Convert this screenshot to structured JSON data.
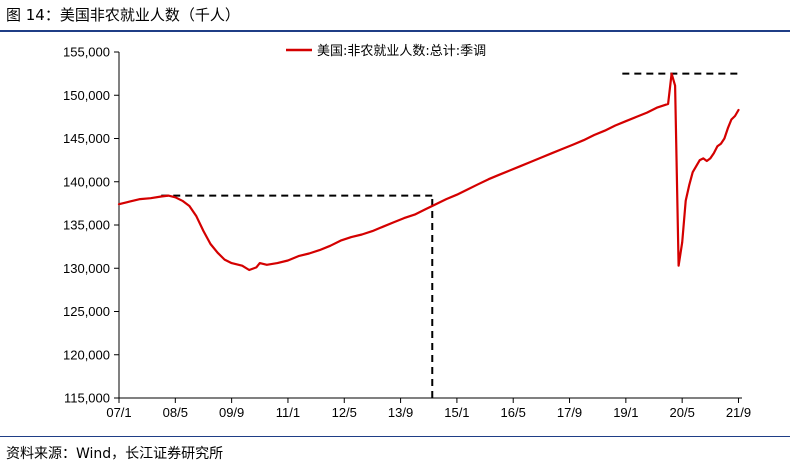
{
  "figure": {
    "title": "图 14：美国非农就业人数（千人）",
    "source": "资料来源：Wind，长江证券研究所"
  },
  "colors": {
    "series": "#d40000",
    "rule": "#1f3e86",
    "reference": "#000000"
  },
  "chart_data": {
    "type": "line",
    "title": "",
    "xlabel": "",
    "ylabel": "",
    "x_ticks": [
      "07/1",
      "08/5",
      "09/9",
      "11/1",
      "12/5",
      "13/9",
      "15/1",
      "16/5",
      "17/9",
      "19/1",
      "20/5",
      "21/9"
    ],
    "xlim": [
      "2007-01",
      "2021-10"
    ],
    "ylim": [
      115000,
      155000
    ],
    "y_ticks": [
      115000,
      120000,
      125000,
      130000,
      135000,
      140000,
      145000,
      150000,
      155000
    ],
    "y_tick_labels": [
      "115,000",
      "120,000",
      "125,000",
      "130,000",
      "135,000",
      "140,000",
      "145,000",
      "150,000",
      "155,000"
    ],
    "grid": false,
    "legend": {
      "position": "top-center"
    },
    "series": [
      {
        "name": "美国:非农就业人数:总计:季调",
        "points": [
          [
            "2007-01",
            137400
          ],
          [
            "2007-04",
            137700
          ],
          [
            "2007-07",
            138000
          ],
          [
            "2007-10",
            138100
          ],
          [
            "2008-01",
            138300
          ],
          [
            "2008-03",
            138400
          ],
          [
            "2008-05",
            138200
          ],
          [
            "2008-07",
            137800
          ],
          [
            "2008-09",
            137200
          ],
          [
            "2008-11",
            136000
          ],
          [
            "2009-01",
            134300
          ],
          [
            "2009-03",
            132800
          ],
          [
            "2009-05",
            131800
          ],
          [
            "2009-07",
            131000
          ],
          [
            "2009-09",
            130600
          ],
          [
            "2009-12",
            130300
          ],
          [
            "2010-02",
            129800
          ],
          [
            "2010-04",
            130100
          ],
          [
            "2010-05",
            130600
          ],
          [
            "2010-07",
            130400
          ],
          [
            "2010-10",
            130600
          ],
          [
            "2011-01",
            130900
          ],
          [
            "2011-04",
            131400
          ],
          [
            "2011-07",
            131700
          ],
          [
            "2011-10",
            132100
          ],
          [
            "2012-01",
            132600
          ],
          [
            "2012-04",
            133200
          ],
          [
            "2012-07",
            133600
          ],
          [
            "2012-10",
            133900
          ],
          [
            "2013-01",
            134300
          ],
          [
            "2013-04",
            134800
          ],
          [
            "2013-07",
            135300
          ],
          [
            "2013-10",
            135800
          ],
          [
            "2014-01",
            136200
          ],
          [
            "2014-04",
            136800
          ],
          [
            "2014-07",
            137400
          ],
          [
            "2014-10",
            138000
          ],
          [
            "2015-01",
            138500
          ],
          [
            "2015-04",
            139100
          ],
          [
            "2015-07",
            139700
          ],
          [
            "2015-10",
            140300
          ],
          [
            "2016-01",
            140800
          ],
          [
            "2016-04",
            141300
          ],
          [
            "2016-07",
            141800
          ],
          [
            "2016-10",
            142300
          ],
          [
            "2017-01",
            142800
          ],
          [
            "2017-04",
            143300
          ],
          [
            "2017-07",
            143800
          ],
          [
            "2017-10",
            144300
          ],
          [
            "2018-01",
            144800
          ],
          [
            "2018-04",
            145400
          ],
          [
            "2018-07",
            145900
          ],
          [
            "2018-10",
            146500
          ],
          [
            "2019-01",
            147000
          ],
          [
            "2019-04",
            147500
          ],
          [
            "2019-07",
            148000
          ],
          [
            "2019-10",
            148600
          ],
          [
            "2020-01",
            149000
          ],
          [
            "2020-02",
            152500
          ],
          [
            "2020-03",
            151100
          ],
          [
            "2020-04",
            130300
          ],
          [
            "2020-05",
            133000
          ],
          [
            "2020-06",
            137800
          ],
          [
            "2020-07",
            139600
          ],
          [
            "2020-08",
            141100
          ],
          [
            "2020-09",
            141800
          ],
          [
            "2020-10",
            142500
          ],
          [
            "2020-11",
            142700
          ],
          [
            "2020-12",
            142400
          ],
          [
            "2021-01",
            142700
          ],
          [
            "2021-02",
            143300
          ],
          [
            "2021-03",
            144100
          ],
          [
            "2021-04",
            144400
          ],
          [
            "2021-05",
            145000
          ],
          [
            "2021-06",
            146200
          ],
          [
            "2021-07",
            147200
          ],
          [
            "2021-08",
            147600
          ],
          [
            "2021-09",
            148300
          ]
        ]
      }
    ],
    "reference_lines": [
      {
        "type": "horizontal",
        "y": 138400,
        "x_from": "2008-01",
        "x_to": "2014-06"
      },
      {
        "type": "vertical",
        "x": "2014-06",
        "y_from": 115000,
        "y_to": 138400
      },
      {
        "type": "horizontal",
        "y": 152500,
        "x_from": "2018-12",
        "x_to": "2021-10"
      }
    ]
  }
}
